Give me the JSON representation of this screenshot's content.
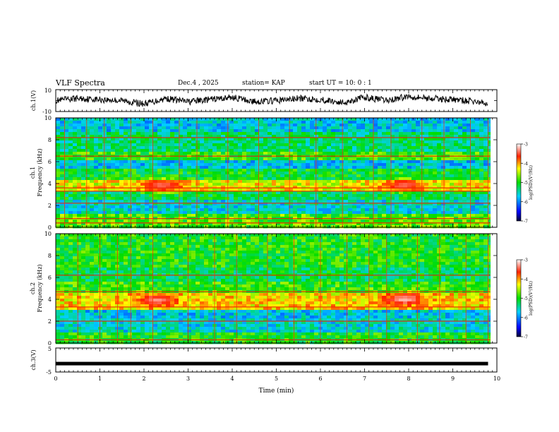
{
  "header": {
    "title": "VLF Spectra",
    "date": "Dec.4 , 2025",
    "station": "station= KAP",
    "start_time": "start UT =  10: 0 : 1"
  },
  "chart_data": [
    {
      "type": "line",
      "panel": "ch1-waveform",
      "ylabel": "ch.1(V)",
      "ylim": [
        -10,
        10
      ],
      "y_ticks": [
        "10",
        "-10"
      ],
      "xlim": [
        0,
        10
      ],
      "x": [
        0,
        0.5,
        1,
        1.5,
        2,
        2.5,
        3,
        3.5,
        4,
        4.5,
        5,
        5.5,
        6,
        6.5,
        7,
        7.5,
        8,
        8.5,
        9,
        9.5,
        9.8
      ],
      "values": [
        0,
        2,
        1,
        0,
        -3,
        2,
        -1,
        1,
        3,
        -1,
        0,
        2,
        1,
        -2,
        3,
        0,
        4,
        2,
        1,
        -1,
        -3
      ]
    },
    {
      "type": "heatmap",
      "panel": "ch1-spectrogram",
      "ylabel_line1": "ch.1",
      "ylabel_line2": "Frequency (kHz)",
      "ylim": [
        0,
        10
      ],
      "y_ticks": [
        "0",
        "2",
        "4",
        "6",
        "8",
        "10"
      ],
      "xlim": [
        0,
        10
      ],
      "colorbar": {
        "label": "log(PSD)(V²/Hz)",
        "ticks": [
          "-3",
          "-4",
          "-5",
          "-6",
          "-7"
        ],
        "range": [
          -7,
          -3
        ]
      },
      "bands": [
        {
          "f0": 0.0,
          "f1": 1.1,
          "level": -4.8
        },
        {
          "f0": 1.1,
          "f1": 2.6,
          "level": -5.6
        },
        {
          "f0": 2.6,
          "f1": 3.2,
          "level": -5.2
        },
        {
          "f0": 3.2,
          "f1": 4.3,
          "level": -4.3
        },
        {
          "f0": 4.3,
          "f1": 5.4,
          "level": -5.1
        },
        {
          "f0": 5.4,
          "f1": 6.2,
          "level": -5.7
        },
        {
          "f0": 6.2,
          "f1": 7.0,
          "level": -4.9
        },
        {
          "f0": 7.0,
          "f1": 8.8,
          "level": -5.3
        },
        {
          "f0": 8.8,
          "f1": 10.0,
          "level": -5.7
        }
      ],
      "lines_khz": [
        0.4,
        0.8,
        2.2,
        3.3,
        3.6,
        6.5,
        8.2
      ],
      "blobs": [
        {
          "t": 2.4,
          "f": 3.8,
          "level": -3.4
        },
        {
          "t": 7.9,
          "f": 3.8,
          "level": -3.4
        }
      ],
      "spikes_min": [
        0.2,
        0.7,
        1.1,
        1.7,
        2.2,
        2.8,
        3.2,
        3.9,
        4.6,
        5.3,
        5.9,
        6.5,
        7.2,
        7.6,
        8.3,
        8.8,
        9.4,
        9.8
      ]
    },
    {
      "type": "heatmap",
      "panel": "ch2-spectrogram",
      "ylabel_line1": "ch.2",
      "ylabel_line2": "Frequency (kHz)",
      "ylim": [
        0,
        10
      ],
      "y_ticks": [
        "0",
        "2",
        "4",
        "6",
        "8",
        "10"
      ],
      "xlim": [
        0,
        10
      ],
      "colorbar": {
        "label": "log(PSD)(V²/Hz)",
        "ticks": [
          "-3",
          "-4",
          "-5",
          "-6",
          "-7"
        ],
        "range": [
          -7,
          -3
        ]
      },
      "bands": [
        {
          "f0": 0.0,
          "f1": 1.0,
          "level": -5.0
        },
        {
          "f0": 1.0,
          "f1": 2.2,
          "level": -5.6
        },
        {
          "f0": 2.2,
          "f1": 3.1,
          "level": -5.7
        },
        {
          "f0": 3.1,
          "f1": 4.5,
          "level": -4.2
        },
        {
          "f0": 4.5,
          "f1": 5.5,
          "level": -4.9
        },
        {
          "f0": 5.5,
          "f1": 7.0,
          "level": -5.2
        },
        {
          "f0": 7.0,
          "f1": 10.0,
          "level": -5.0
        }
      ],
      "lines_khz": [
        0.3,
        2.0,
        3.3,
        4.7,
        6.2
      ],
      "blobs": [
        {
          "t": 2.3,
          "f": 3.9,
          "level": -3.3
        },
        {
          "t": 7.9,
          "f": 4.0,
          "level": -3.2
        }
      ],
      "spikes_min": [
        0.5,
        1.0,
        1.4,
        1.7,
        2.2,
        3.0,
        3.6,
        4.1,
        4.8,
        5.4,
        6.0,
        6.6,
        7.1,
        7.5,
        8.2,
        8.7,
        9.3,
        9.8
      ]
    },
    {
      "type": "line",
      "panel": "ch3-waveform",
      "ylabel": "ch.3(V)",
      "ylim": [
        -5,
        5
      ],
      "y_ticks": [
        "5",
        "-5"
      ],
      "xlim": [
        0,
        10
      ],
      "xlabel": "Time (min)",
      "x_ticks": [
        "0",
        "1",
        "2",
        "3",
        "4",
        "5",
        "6",
        "7",
        "8",
        "9",
        "10"
      ],
      "x": [
        0,
        9.8
      ],
      "values": [
        -1.5,
        -1.5
      ]
    }
  ]
}
